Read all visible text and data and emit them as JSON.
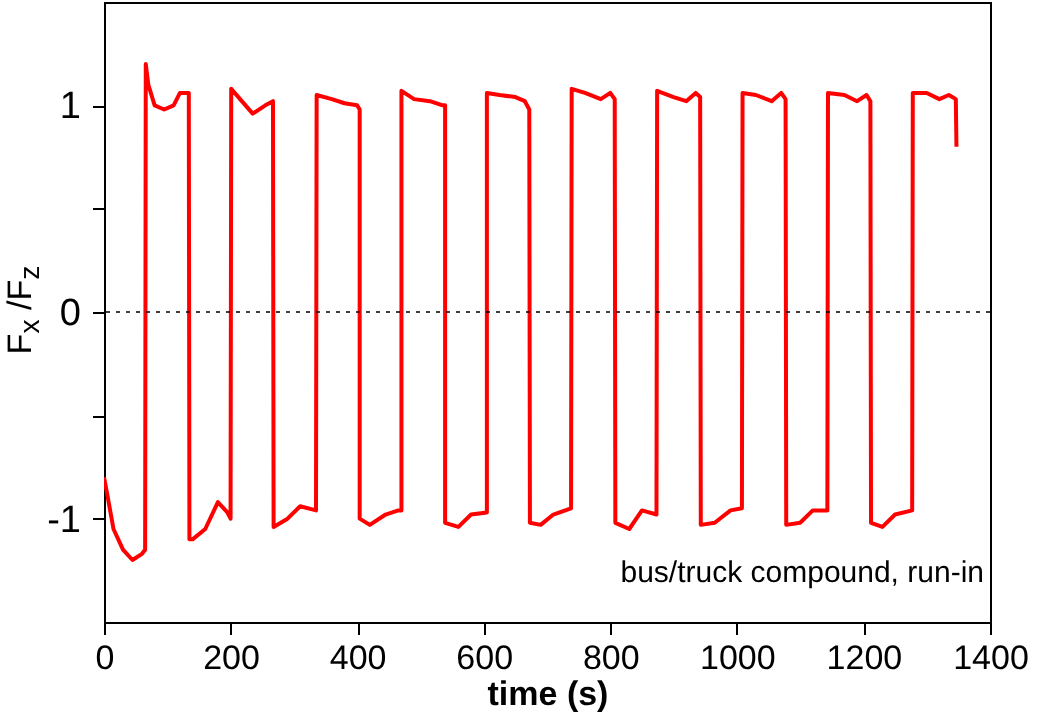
{
  "chart_data": {
    "type": "line",
    "xlabel": "time  (s)",
    "ylabel": "F$_{x}$ /F$_{z}$",
    "annotations": [
      "bus/truck compound, run-in"
    ],
    "xlim": [
      0,
      1400
    ],
    "xticks": [
      0,
      200,
      400,
      600,
      800,
      1000,
      1200,
      1400
    ],
    "ylim": [
      -1.5,
      1.5
    ],
    "yticks": [
      -1,
      {
        "value": -0.5,
        "label": null
      },
      0,
      {
        "value": 0.5,
        "label": null
      },
      1
    ],
    "ref_lines": [
      {
        "axis": "y",
        "value": 0,
        "color": "#000000",
        "line_style": "dotted"
      }
    ],
    "series": [
      {
        "color": "#ff0000",
        "x": [
          0,
          5,
          15,
          30,
          45,
          60,
          65,
          66,
          70,
          80,
          95,
          110,
          120,
          134,
          135,
          140,
          160,
          180,
          195,
          200,
          201,
          215,
          235,
          255,
          267,
          268,
          290,
          310,
          335,
          336,
          360,
          380,
          400,
          404,
          404,
          420,
          445,
          465,
          470,
          470,
          490,
          515,
          535,
          539,
          539,
          560,
          580,
          605,
          605,
          625,
          650,
          665,
          672,
          673,
          690,
          710,
          738,
          739,
          760,
          785,
          800,
          807,
          808,
          830,
          850,
          873,
          874,
          900,
          920,
          935,
          942,
          943,
          965,
          990,
          1008,
          1009,
          1030,
          1055,
          1070,
          1077,
          1078,
          1100,
          1120,
          1143,
          1144,
          1170,
          1190,
          1205,
          1211,
          1212,
          1230,
          1250,
          1277,
          1278,
          1300,
          1320,
          1335,
          1346,
          1347
        ],
        "values": [
          -0.8,
          -0.88,
          -1.05,
          -1.15,
          -1.2,
          -1.17,
          -1.15,
          1.2,
          1.1,
          1.0,
          0.98,
          1.0,
          1.06,
          1.06,
          -1.1,
          -1.1,
          -1.05,
          -0.92,
          -0.97,
          -1.0,
          1.08,
          1.03,
          0.96,
          1.0,
          1.02,
          -1.04,
          -1.0,
          -0.94,
          -0.96,
          1.05,
          1.03,
          1.01,
          1.0,
          0.98,
          -1.0,
          -1.03,
          -0.98,
          -0.96,
          -0.96,
          1.07,
          1.03,
          1.02,
          1.0,
          1.0,
          -1.02,
          -1.04,
          -0.98,
          -0.97,
          1.06,
          1.05,
          1.04,
          1.02,
          0.98,
          -1.02,
          -1.03,
          -0.98,
          -0.95,
          1.08,
          1.06,
          1.03,
          1.06,
          1.03,
          -1.02,
          -1.05,
          -0.96,
          -0.98,
          1.07,
          1.04,
          1.02,
          1.06,
          1.04,
          -1.03,
          -1.02,
          -0.96,
          -0.95,
          1.06,
          1.05,
          1.02,
          1.06,
          1.03,
          -1.03,
          -1.02,
          -0.96,
          -0.96,
          1.06,
          1.05,
          1.02,
          1.05,
          1.02,
          -1.02,
          -1.04,
          -0.98,
          -0.96,
          1.06,
          1.06,
          1.03,
          1.05,
          1.03,
          0.8
        ]
      }
    ]
  }
}
